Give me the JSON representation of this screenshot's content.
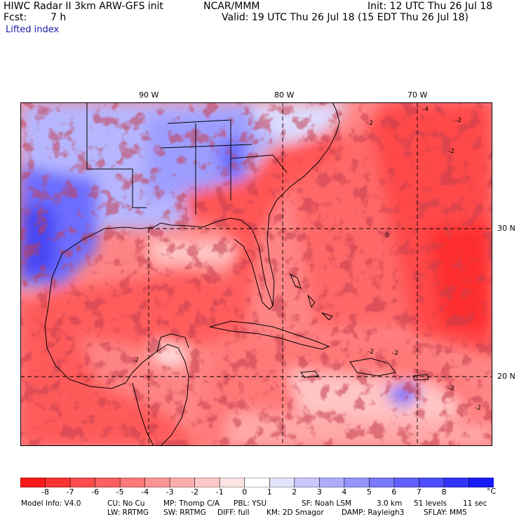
{
  "header": {
    "model": "HIWC Radar II 3km ARW-GFS init",
    "org": "NCAR/MMM",
    "init": "Init: 12 UTC Thu 26 Jul 18",
    "fcst_label": "Fcst:",
    "fcst_value": "7 h",
    "valid": "Valid: 19 UTC Thu 26 Jul 18 (15 EDT Thu 26 Jul 18)",
    "field": "Lifted index"
  },
  "map": {
    "lon_labels": [
      "90 W",
      "80 W",
      "70 W"
    ],
    "lat_labels": [
      "30 N",
      "20 N"
    ],
    "contour_labels": [
      "-2",
      "-2",
      "-2",
      "0",
      "-2",
      "-2",
      "-2",
      "-4",
      "-2",
      "-2"
    ]
  },
  "colorbar": {
    "colors": [
      "#ff1a1a",
      "#ff3333",
      "#ff4d4d",
      "#ff6060",
      "#ff7a7a",
      "#ff9494",
      "#ffadad",
      "#ffc8c8",
      "#ffe4e4",
      "#ffffff",
      "#e4e4ff",
      "#c8c8ff",
      "#adadff",
      "#9494ff",
      "#7a7aff",
      "#6060ff",
      "#4d4dff",
      "#3333ff",
      "#1a1aff"
    ],
    "ticks": [
      "-8",
      "-7",
      "-6",
      "-5",
      "-4",
      "-3",
      "-2",
      "-1",
      "0",
      "1",
      "2",
      "3",
      "4",
      "5",
      "6",
      "7",
      "8"
    ],
    "unit": "°C"
  },
  "footer": {
    "line1": [
      "Model Info: V4.0",
      "CU: No Cu",
      "MP: Thomp C/A",
      "PBL: YSU",
      "SF: Noah LSM",
      "3.0 km",
      "51 levels",
      "11 sec"
    ],
    "line2": [
      "LW: RRTMG",
      "SW: RRTMG",
      "DIFF: full",
      "KM: 2D Smagor",
      "DAMP: Rayleigh3",
      "SFLAY: MM5"
    ]
  }
}
